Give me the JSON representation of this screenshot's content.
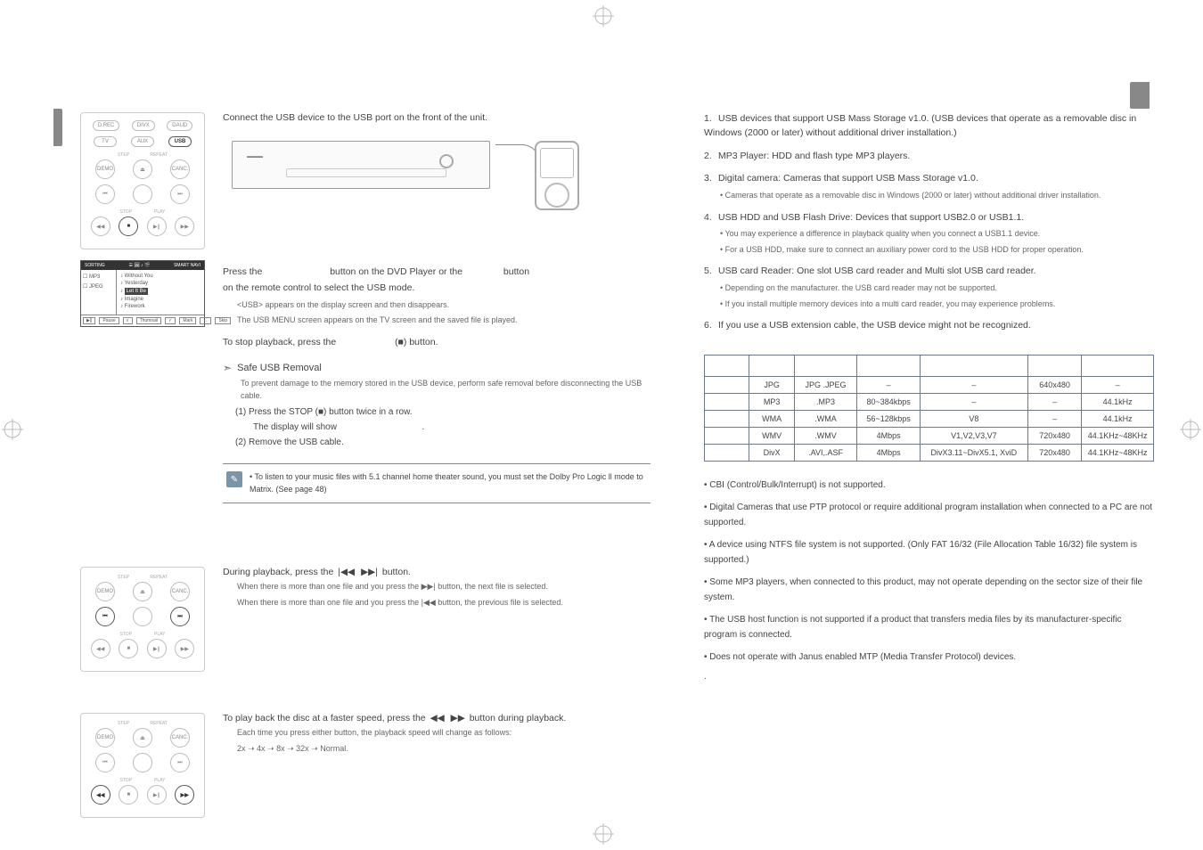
{
  "colors": {
    "text": "#444444",
    "muted": "#666666",
    "light": "#aaaaaa",
    "rule": "#888888",
    "table_border": "#6a7a8a",
    "note_icon_bg": "#7a95a5",
    "background": "#ffffff"
  },
  "typography": {
    "base_font_pt": 10,
    "small_font_pt": 9,
    "tiny_font_pt": 6,
    "font_family": "Arial"
  },
  "connect": {
    "intro": "Connect the USB device to the USB port on the front of the unit.",
    "press_line_a": "Press the",
    "press_line_b": "button on the DVD Player or the",
    "press_line_c": "button",
    "press_line2": "on the remote control to select the USB mode.",
    "sub1": "<USB> appears on the display screen and then disappears.",
    "sub2": "The USB MENU screen appears on the TV screen and the saved file is played.",
    "stop_a": "To stop playback, press the",
    "stop_b": "(■) button.",
    "safe_title": "Safe USB Removal",
    "safe_body": "To prevent damage to the memory stored in the USB device, perform safe removal before disconnecting the USB cable.",
    "step1_a": "(1)  Press the STOP (■) button twice in a row.",
    "step1_b": "The display will show",
    "step1_c": ".",
    "step2": "(2) Remove the USB cable.",
    "note": "To listen to your music files with 5.1 channel home theater sound, you must set the Dolby Pro Logic ll mode to Matrix. (See page 48)"
  },
  "remote": {
    "row1": [
      "D.REC",
      "DIVX",
      "DAUD"
    ],
    "row2": [
      "TV",
      "AUX",
      "USB"
    ],
    "row3_labels": [
      "",
      "STEP",
      "REPEAT",
      ""
    ],
    "row3": [
      "DEMO",
      "⏏",
      "CANC."
    ],
    "row4": [
      "⏮",
      "",
      "⏭"
    ],
    "row4_labels": [
      "",
      "STOP",
      "PLAY",
      ""
    ],
    "row5": [
      "◀◀",
      "■",
      "▶||",
      "▶▶"
    ]
  },
  "menu_panel": {
    "head_left": "SORTING",
    "head_icons": "☰ 🖼 ♪ 🎬",
    "head_right": "SMART NAVI",
    "left_items": [
      "MP3",
      "JPEG"
    ],
    "right_items": [
      "Without You",
      "Yesterday",
      "Let It Be",
      "Imagine",
      "Firework"
    ],
    "selected_idx": 2,
    "foot": [
      "Pause",
      "Thumnail",
      "Mark",
      "Skip"
    ]
  },
  "skip": {
    "intro": "During playback, press the",
    "intro2": "button.",
    "line1": "When there is more than one file and you press the ▶▶| button, the next file is selected.",
    "line2": "When there is more than one file and you press the |◀◀ button, the previous file is selected."
  },
  "fast": {
    "intro_a": "To play back the disc at a faster speed, press the",
    "intro_b": "button during playback.",
    "line1": "Each time you press either button, the playback speed will change as follows:",
    "speeds": "2x ➝ 4x ➝ 8x ➝ 32x ➝ Normal."
  },
  "right": {
    "items": [
      {
        "num": "1.",
        "text": "USB devices that support USB Mass Storage v1.0. (USB devices that operate as a removable disc in Windows (2000 or later) without additional driver installation.)",
        "subs": []
      },
      {
        "num": "2.",
        "text": "MP3 Player: HDD and flash type MP3 players.",
        "subs": []
      },
      {
        "num": "3.",
        "text": "Digital camera: Cameras that support USB Mass Storage v1.0.",
        "subs": [
          "• Cameras that operate as a removable disc in Windows (2000 or later) without additional driver installation."
        ]
      },
      {
        "num": "4.",
        "text": "USB HDD and USB Flash Drive: Devices that support USB2.0 or USB1.1.",
        "subs": [
          "• You may experience a difference in playback quality when you connect a USB1.1 device.",
          "• For a USB HDD, make sure to connect an auxiliary power cord to the USB HDD for proper operation."
        ]
      },
      {
        "num": "5.",
        "text": "USB card Reader: One slot USB card reader and Multi slot USB card reader.",
        "subs": [
          "• Depending on the manufacturer. the USB card reader may not be supported.",
          "• If you install multiple memory devices into a multi card reader, you may experience problems."
        ]
      },
      {
        "num": "6.",
        "text": "If you use a USB extension cable, the USB device might not be recognized.",
        "subs": []
      }
    ],
    "table": {
      "header_empty_cols": 6,
      "rows": [
        [
          "",
          "JPG",
          "JPG .JPEG",
          "–",
          "–",
          "640x480",
          "–"
        ],
        [
          "",
          "MP3",
          ".MP3",
          "80~384kbps",
          "–",
          "–",
          "44.1kHz"
        ],
        [
          "",
          "WMA",
          ".WMA",
          "56~128kbps",
          "V8",
          "–",
          "44.1kHz"
        ],
        [
          "",
          "WMV",
          ".WMV",
          "4Mbps",
          "V1,V2,V3,V7",
          "720x480",
          "44.1KHz~48KHz"
        ],
        [
          "",
          "DivX",
          ".AVI,.ASF",
          "4Mbps",
          "DivX3.11~DivX5.1, XviD",
          "720x480",
          "44.1KHz~48KHz"
        ]
      ],
      "col_widths": [
        "10%",
        "10%",
        "14%",
        "14%",
        "24%",
        "12%",
        "16%"
      ]
    },
    "notes": [
      "CBI (Control/Bulk/Interrupt) is not supported.",
      "Digital Cameras that use PTP protocol or require additional program installation when connected to a PC are not supported.",
      "A device using NTFS file system is not supported. (Only FAT 16/32 (File Allocation Table 16/32) file system is supported.)",
      "Some MP3 players, when connected to this product, may not operate depending on the sector size of their file system.",
      "The USB host function is not supported if a product that transfers media files by its manufacturer-specific program is connected.",
      "Does not operate with Janus enabled MTP (Media Transfer Protocol) devices."
    ]
  }
}
